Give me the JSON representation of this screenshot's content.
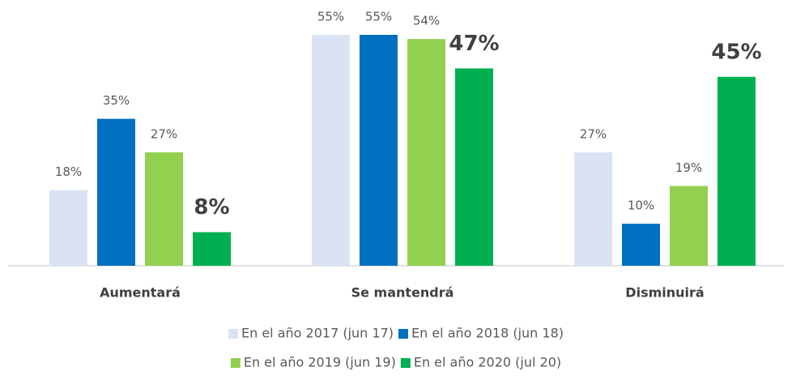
{
  "chart_data": {
    "type": "bar",
    "categories": [
      "Aumentará",
      "Se mantendrá",
      "Disminuirá"
    ],
    "series": [
      {
        "name": "En el año 2017 (jun 17)",
        "color": "#dae3f3",
        "values": [
          18,
          55,
          27
        ],
        "value_labels": [
          "18%",
          "55%",
          "27%"
        ]
      },
      {
        "name": "En el año 2018 (jun 18)",
        "color": "#0070c0",
        "values": [
          35,
          55,
          10
        ],
        "value_labels": [
          "35%",
          "55%",
          "10%"
        ]
      },
      {
        "name": "En el año 2019 (jun 19)",
        "color": "#92d050",
        "values": [
          27,
          54,
          19
        ],
        "value_labels": [
          "27%",
          "54%",
          "19%"
        ]
      },
      {
        "name": "En el año 2020 (jul 20)",
        "color": "#00b050",
        "values": [
          8,
          47,
          45
        ],
        "value_labels": [
          "8%",
          "47%",
          "45%"
        ],
        "bold_labels": true
      }
    ],
    "legend": "bottom"
  }
}
